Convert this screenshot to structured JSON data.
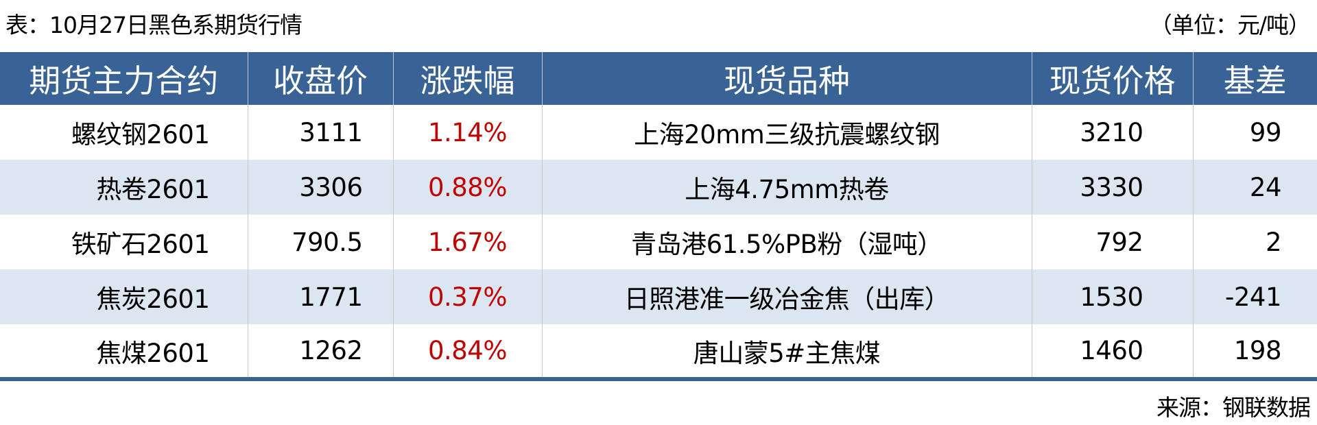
{
  "title": "表：10月27日黑色系期货行情",
  "unit": "（单位：元/吨）",
  "table": {
    "headers": [
      "期货主力合约",
      "收盘价",
      "涨跌幅",
      "现货品种",
      "现货价格",
      "基差"
    ],
    "rows": [
      [
        "螺纹钢2601",
        "3111",
        "1.14%",
        "上海20mm三级抗震螺纹钢",
        "3210",
        "99"
      ],
      [
        "热卷2601",
        "3306",
        "0.88%",
        "上海4.75mm热卷",
        "3330",
        "24"
      ],
      [
        "铁矿石2601",
        "790.5",
        "1.67%",
        "青岛港61.5%PB粉（湿吨）",
        "792",
        "2"
      ],
      [
        "焦炭2601",
        "1771",
        "0.37%",
        "日照港准一级冶金焦（出库）",
        "1530",
        "-241"
      ],
      [
        "焦煤2601",
        "1262",
        "0.84%",
        "唐山蒙5#主焦煤",
        "1460",
        "198"
      ]
    ]
  },
  "source": "来源：钢联数据",
  "colors": {
    "header_bg": "#3a6395",
    "alt_row": "#dce6f1",
    "change_text": "#c00000"
  }
}
